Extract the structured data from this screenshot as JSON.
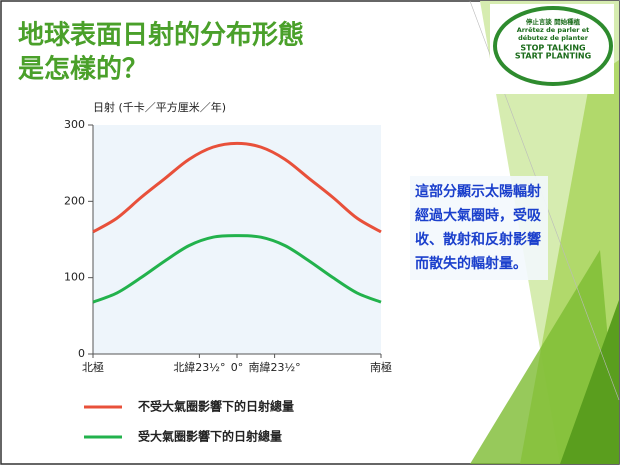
{
  "slide": {
    "title_lines": [
      "地球表面日射的分布形態",
      "是怎樣的？"
    ],
    "logo_lines": [
      "停止言談 開始種植",
      "Arrêtez de parler et",
      "débutez de planter",
      "STOP TALKING",
      "START PLANTING"
    ]
  },
  "chart_data": {
    "type": "line",
    "y_label": "日射 (千卡／平方厘米／年)",
    "x": [
      90,
      75,
      60,
      45,
      30,
      15,
      0,
      -15,
      -30,
      -45,
      -60,
      -75,
      -90
    ],
    "xlim": [
      90,
      -90
    ],
    "xticks": [
      {
        "value": 90,
        "label": "北極"
      },
      {
        "value": 23.5,
        "label": "北緯23½°"
      },
      {
        "value": 0,
        "label": "0°"
      },
      {
        "value": -23.5,
        "label": "南緯23½°"
      },
      {
        "value": -90,
        "label": "南極"
      }
    ],
    "ylim": [
      0,
      300
    ],
    "yticks": [
      0,
      100,
      200,
      300
    ],
    "series": [
      {
        "name": "不受大氣圈影響下的日射總量",
        "color": "#e8503a",
        "values": [
          160,
          178,
          205,
          230,
          255,
          271,
          276,
          271,
          255,
          230,
          205,
          178,
          160
        ]
      },
      {
        "name": "受大氣圈影響下的日射總量",
        "color": "#22b24c",
        "values": [
          68,
          80,
          100,
          122,
          142,
          153,
          155,
          153,
          142,
          122,
          100,
          80,
          68
        ]
      }
    ],
    "annotation_lines": [
      "這部分顯示太陽輻射",
      "經過大氣圈時，受吸",
      "收、散射和反射影響",
      "而散失的輻射量。"
    ]
  }
}
